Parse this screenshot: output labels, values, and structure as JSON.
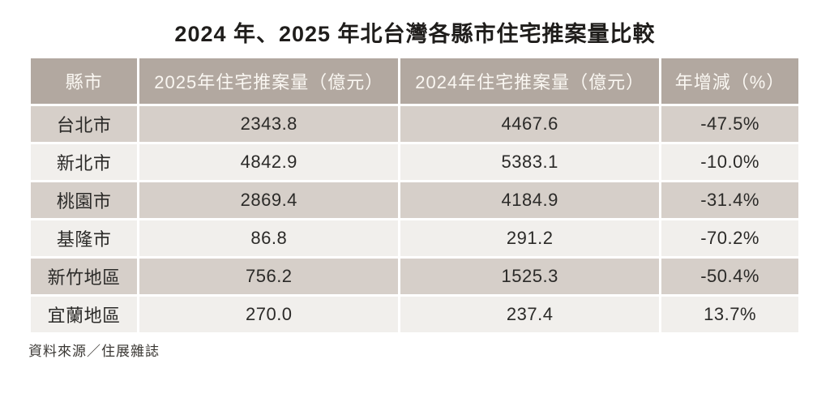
{
  "title": "2024 年、2025 年北台灣各縣市住宅推案量比較",
  "source_note": "資料來源／住展雜誌",
  "colors": {
    "header_bg": "#b2a8a0",
    "header_text": "#faf7f2",
    "row_odd_bg": "#d6cfc9",
    "row_even_bg": "#f1efec",
    "body_text": "#2b2a28",
    "divider": "#ffffff",
    "page_bg": "#ffffff"
  },
  "table": {
    "columns": [
      "縣市",
      "2025年住宅推案量（億元）",
      "2024年住宅推案量（億元）",
      "年增減（%）"
    ],
    "column_width_percents": [
      14,
      34,
      34,
      18
    ],
    "rows": [
      [
        "台北市",
        "2343.8",
        "4467.6",
        "-47.5%"
      ],
      [
        "新北市",
        "4842.9",
        "5383.1",
        "-10.0%"
      ],
      [
        "桃園市",
        "2869.4",
        "4184.9",
        "-31.4%"
      ],
      [
        "基隆市",
        "86.8",
        "291.2",
        "-70.2%"
      ],
      [
        "新竹地區",
        "756.2",
        "1525.3",
        "-50.4%"
      ],
      [
        "宜蘭地區",
        "270.0",
        "237.4",
        "13.7%"
      ]
    ]
  },
  "chart_data": {
    "type": "table",
    "title": "2024 年、2025 年北台灣各縣市住宅推案量比較",
    "columns": [
      "縣市",
      "2025年住宅推案量（億元）",
      "2024年住宅推案量（億元）",
      "年增減（%）"
    ],
    "categories": [
      "台北市",
      "新北市",
      "桃園市",
      "基隆市",
      "新竹地區",
      "宜蘭地區"
    ],
    "series": [
      {
        "name": "2025年住宅推案量（億元）",
        "values": [
          2343.8,
          4842.9,
          2869.4,
          86.8,
          756.2,
          270.0
        ]
      },
      {
        "name": "2024年住宅推案量（億元）",
        "values": [
          4467.6,
          5383.1,
          4184.9,
          291.2,
          1525.3,
          237.4
        ]
      },
      {
        "name": "年增減（%）",
        "values": [
          -47.5,
          -10.0,
          -31.4,
          -70.2,
          -50.4,
          13.7
        ]
      }
    ],
    "annotations": [
      "資料來源／住展雜誌"
    ],
    "layout": {
      "striped": true,
      "gridlines": "white 3px gaps",
      "header_style": "taupe background, white text"
    }
  }
}
